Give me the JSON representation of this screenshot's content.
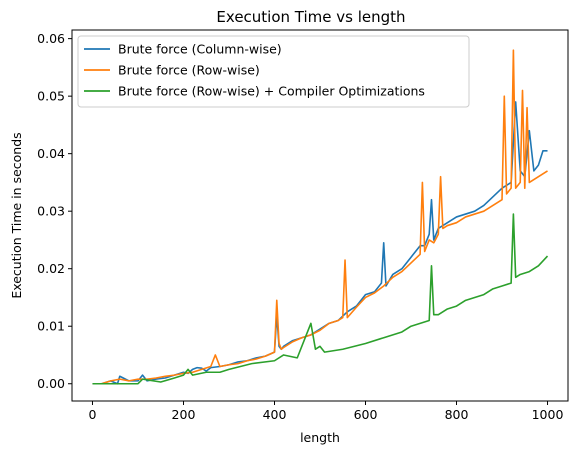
{
  "chart_data": {
    "type": "line",
    "title": "Execution Time vs length",
    "xlabel": "length",
    "ylabel": "Execution Time in seconds",
    "xlim": [
      -45,
      1045
    ],
    "ylim": [
      -0.003,
      0.0615
    ],
    "xticks": [
      0,
      200,
      400,
      600,
      800,
      1000
    ],
    "xtick_labels": [
      "0",
      "200",
      "400",
      "600",
      "800",
      "1000"
    ],
    "yticks": [
      0.0,
      0.01,
      0.02,
      0.03,
      0.04,
      0.05,
      0.06
    ],
    "ytick_labels": [
      "0.00",
      "0.01",
      "0.02",
      "0.03",
      "0.04",
      "0.05",
      "0.06"
    ],
    "grid": false,
    "legend_position": "upper-left",
    "series": [
      {
        "name": "Brute force (Column-wise)",
        "color": "#1f77b4",
        "x": [
          0,
          20,
          40,
          55,
          60,
          80,
          100,
          110,
          120,
          140,
          160,
          180,
          200,
          210,
          220,
          230,
          240,
          250,
          260,
          280,
          300,
          320,
          340,
          360,
          380,
          400,
          405,
          410,
          415,
          420,
          440,
          460,
          480,
          490,
          500,
          520,
          540,
          560,
          580,
          600,
          620,
          635,
          640,
          645,
          660,
          680,
          700,
          720,
          730,
          740,
          745,
          750,
          760,
          780,
          800,
          820,
          840,
          860,
          880,
          900,
          910,
          920,
          930,
          940,
          950,
          960,
          970,
          980,
          990,
          1000
        ],
        "values": [
          0.0,
          0.0,
          0.0005,
          0.0,
          0.0013,
          0.0005,
          0.0005,
          0.0015,
          0.0005,
          0.0008,
          0.001,
          0.0015,
          0.002,
          0.0018,
          0.0025,
          0.0028,
          0.0027,
          0.0022,
          0.0028,
          0.003,
          0.0033,
          0.0038,
          0.004,
          0.0045,
          0.0048,
          0.0055,
          0.012,
          0.0065,
          0.006,
          0.0065,
          0.0075,
          0.008,
          0.0085,
          0.009,
          0.0095,
          0.0105,
          0.011,
          0.0125,
          0.0135,
          0.0155,
          0.016,
          0.0175,
          0.0245,
          0.017,
          0.019,
          0.02,
          0.022,
          0.024,
          0.024,
          0.026,
          0.032,
          0.025,
          0.027,
          0.028,
          0.029,
          0.0295,
          0.03,
          0.031,
          0.0325,
          0.034,
          0.0345,
          0.035,
          0.049,
          0.037,
          0.036,
          0.044,
          0.037,
          0.038,
          0.0405,
          0.0405
        ]
      },
      {
        "name": "Brute force (Row-wise)",
        "color": "#ff7f0e",
        "x": [
          0,
          20,
          40,
          60,
          80,
          100,
          120,
          140,
          160,
          180,
          200,
          220,
          240,
          260,
          270,
          280,
          300,
          320,
          340,
          360,
          380,
          400,
          405,
          410,
          415,
          420,
          440,
          460,
          480,
          500,
          520,
          540,
          550,
          555,
          560,
          580,
          600,
          620,
          640,
          660,
          680,
          700,
          720,
          725,
          730,
          740,
          750,
          760,
          765,
          770,
          780,
          800,
          820,
          840,
          860,
          880,
          900,
          905,
          910,
          920,
          925,
          930,
          940,
          945,
          950,
          955,
          960,
          980,
          1000
        ],
        "values": [
          0.0,
          0.0,
          0.0005,
          0.0008,
          0.0005,
          0.0008,
          0.0008,
          0.001,
          0.0013,
          0.0015,
          0.0018,
          0.002,
          0.0025,
          0.003,
          0.005,
          0.003,
          0.0033,
          0.0035,
          0.004,
          0.0043,
          0.0048,
          0.0055,
          0.0145,
          0.007,
          0.006,
          0.0063,
          0.0073,
          0.008,
          0.0085,
          0.0093,
          0.0105,
          0.011,
          0.0115,
          0.0215,
          0.0115,
          0.0133,
          0.015,
          0.0158,
          0.017,
          0.0185,
          0.0195,
          0.021,
          0.0225,
          0.035,
          0.023,
          0.025,
          0.0245,
          0.026,
          0.036,
          0.027,
          0.0275,
          0.028,
          0.029,
          0.0295,
          0.03,
          0.031,
          0.032,
          0.05,
          0.033,
          0.034,
          0.058,
          0.034,
          0.035,
          0.051,
          0.034,
          0.048,
          0.035,
          0.036,
          0.037
        ]
      },
      {
        "name": "Brute force (Row-wise) + Compiler Optimizations",
        "color": "#2ca02c",
        "x": [
          0,
          50,
          100,
          110,
          150,
          180,
          200,
          210,
          220,
          250,
          280,
          300,
          350,
          400,
          420,
          450,
          470,
          480,
          490,
          500,
          510,
          550,
          600,
          640,
          660,
          680,
          700,
          720,
          740,
          745,
          750,
          760,
          780,
          800,
          820,
          840,
          860,
          880,
          900,
          920,
          925,
          930,
          940,
          960,
          980,
          1000
        ],
        "values": [
          0.0,
          0.0,
          0.0,
          0.0008,
          0.0003,
          0.001,
          0.0015,
          0.0025,
          0.0015,
          0.002,
          0.002,
          0.0025,
          0.0035,
          0.004,
          0.005,
          0.0045,
          0.0085,
          0.0105,
          0.006,
          0.0065,
          0.0055,
          0.006,
          0.007,
          0.008,
          0.0085,
          0.009,
          0.01,
          0.0105,
          0.011,
          0.0205,
          0.012,
          0.012,
          0.013,
          0.0135,
          0.0145,
          0.015,
          0.0155,
          0.0165,
          0.017,
          0.0175,
          0.0295,
          0.0185,
          0.019,
          0.0195,
          0.0205,
          0.0222
        ]
      }
    ]
  }
}
